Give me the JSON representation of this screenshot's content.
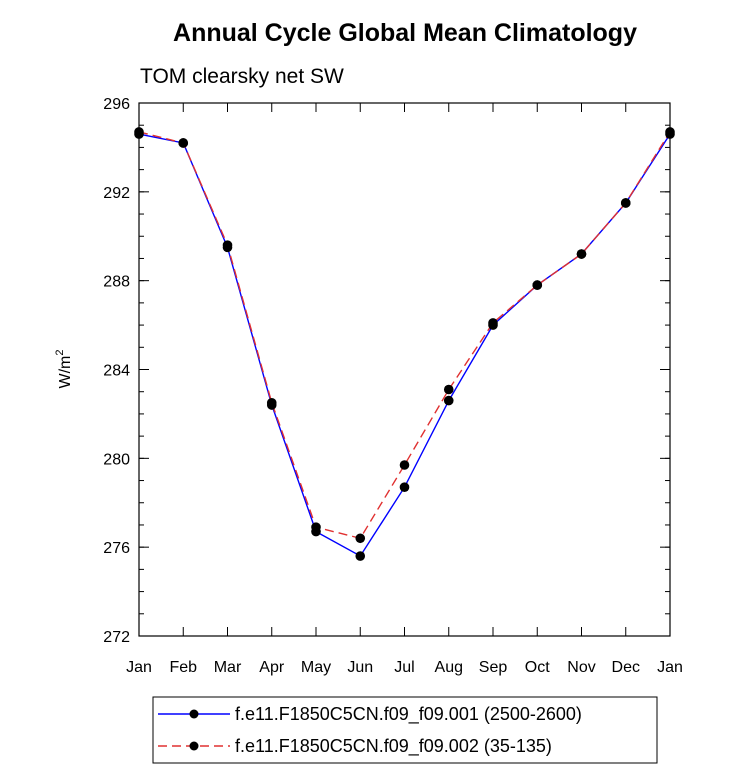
{
  "chart_data": {
    "type": "line",
    "title": "Annual Cycle Global Mean Climatology",
    "subtitle": "TOM clearsky net SW",
    "ylabel_base": "W/m",
    "ylabel_sup": "2",
    "xlabel": "",
    "categories": [
      "Jan",
      "Feb",
      "Mar",
      "Apr",
      "May",
      "Jun",
      "Jul",
      "Aug",
      "Sep",
      "Oct",
      "Nov",
      "Dec",
      "Jan"
    ],
    "ylim": [
      272,
      296
    ],
    "yticks": [
      "272",
      "276",
      "280",
      "284",
      "288",
      "292",
      "296"
    ],
    "ytick_values": [
      272,
      276,
      280,
      284,
      288,
      292,
      296
    ],
    "y_minor_step": 1,
    "grid": false,
    "legend_position": "bottom",
    "series": [
      {
        "name": "f.e11.F1850C5CN.f09_f09.001 (2500-2600)",
        "color": "#0000ff",
        "dash": "solid",
        "marker": "circle",
        "values": [
          294.6,
          294.2,
          289.5,
          282.4,
          276.7,
          275.6,
          278.7,
          282.6,
          286.0,
          287.8,
          289.2,
          291.5,
          294.6
        ]
      },
      {
        "name": "f.e11.F1850C5CN.f09_f09.002 (35-135)",
        "color": "#e03030",
        "dash": "dashed",
        "marker": "circle",
        "values": [
          294.7,
          294.2,
          289.6,
          282.5,
          276.9,
          276.4,
          279.7,
          283.1,
          286.1,
          287.8,
          289.2,
          291.5,
          294.7
        ]
      }
    ]
  }
}
